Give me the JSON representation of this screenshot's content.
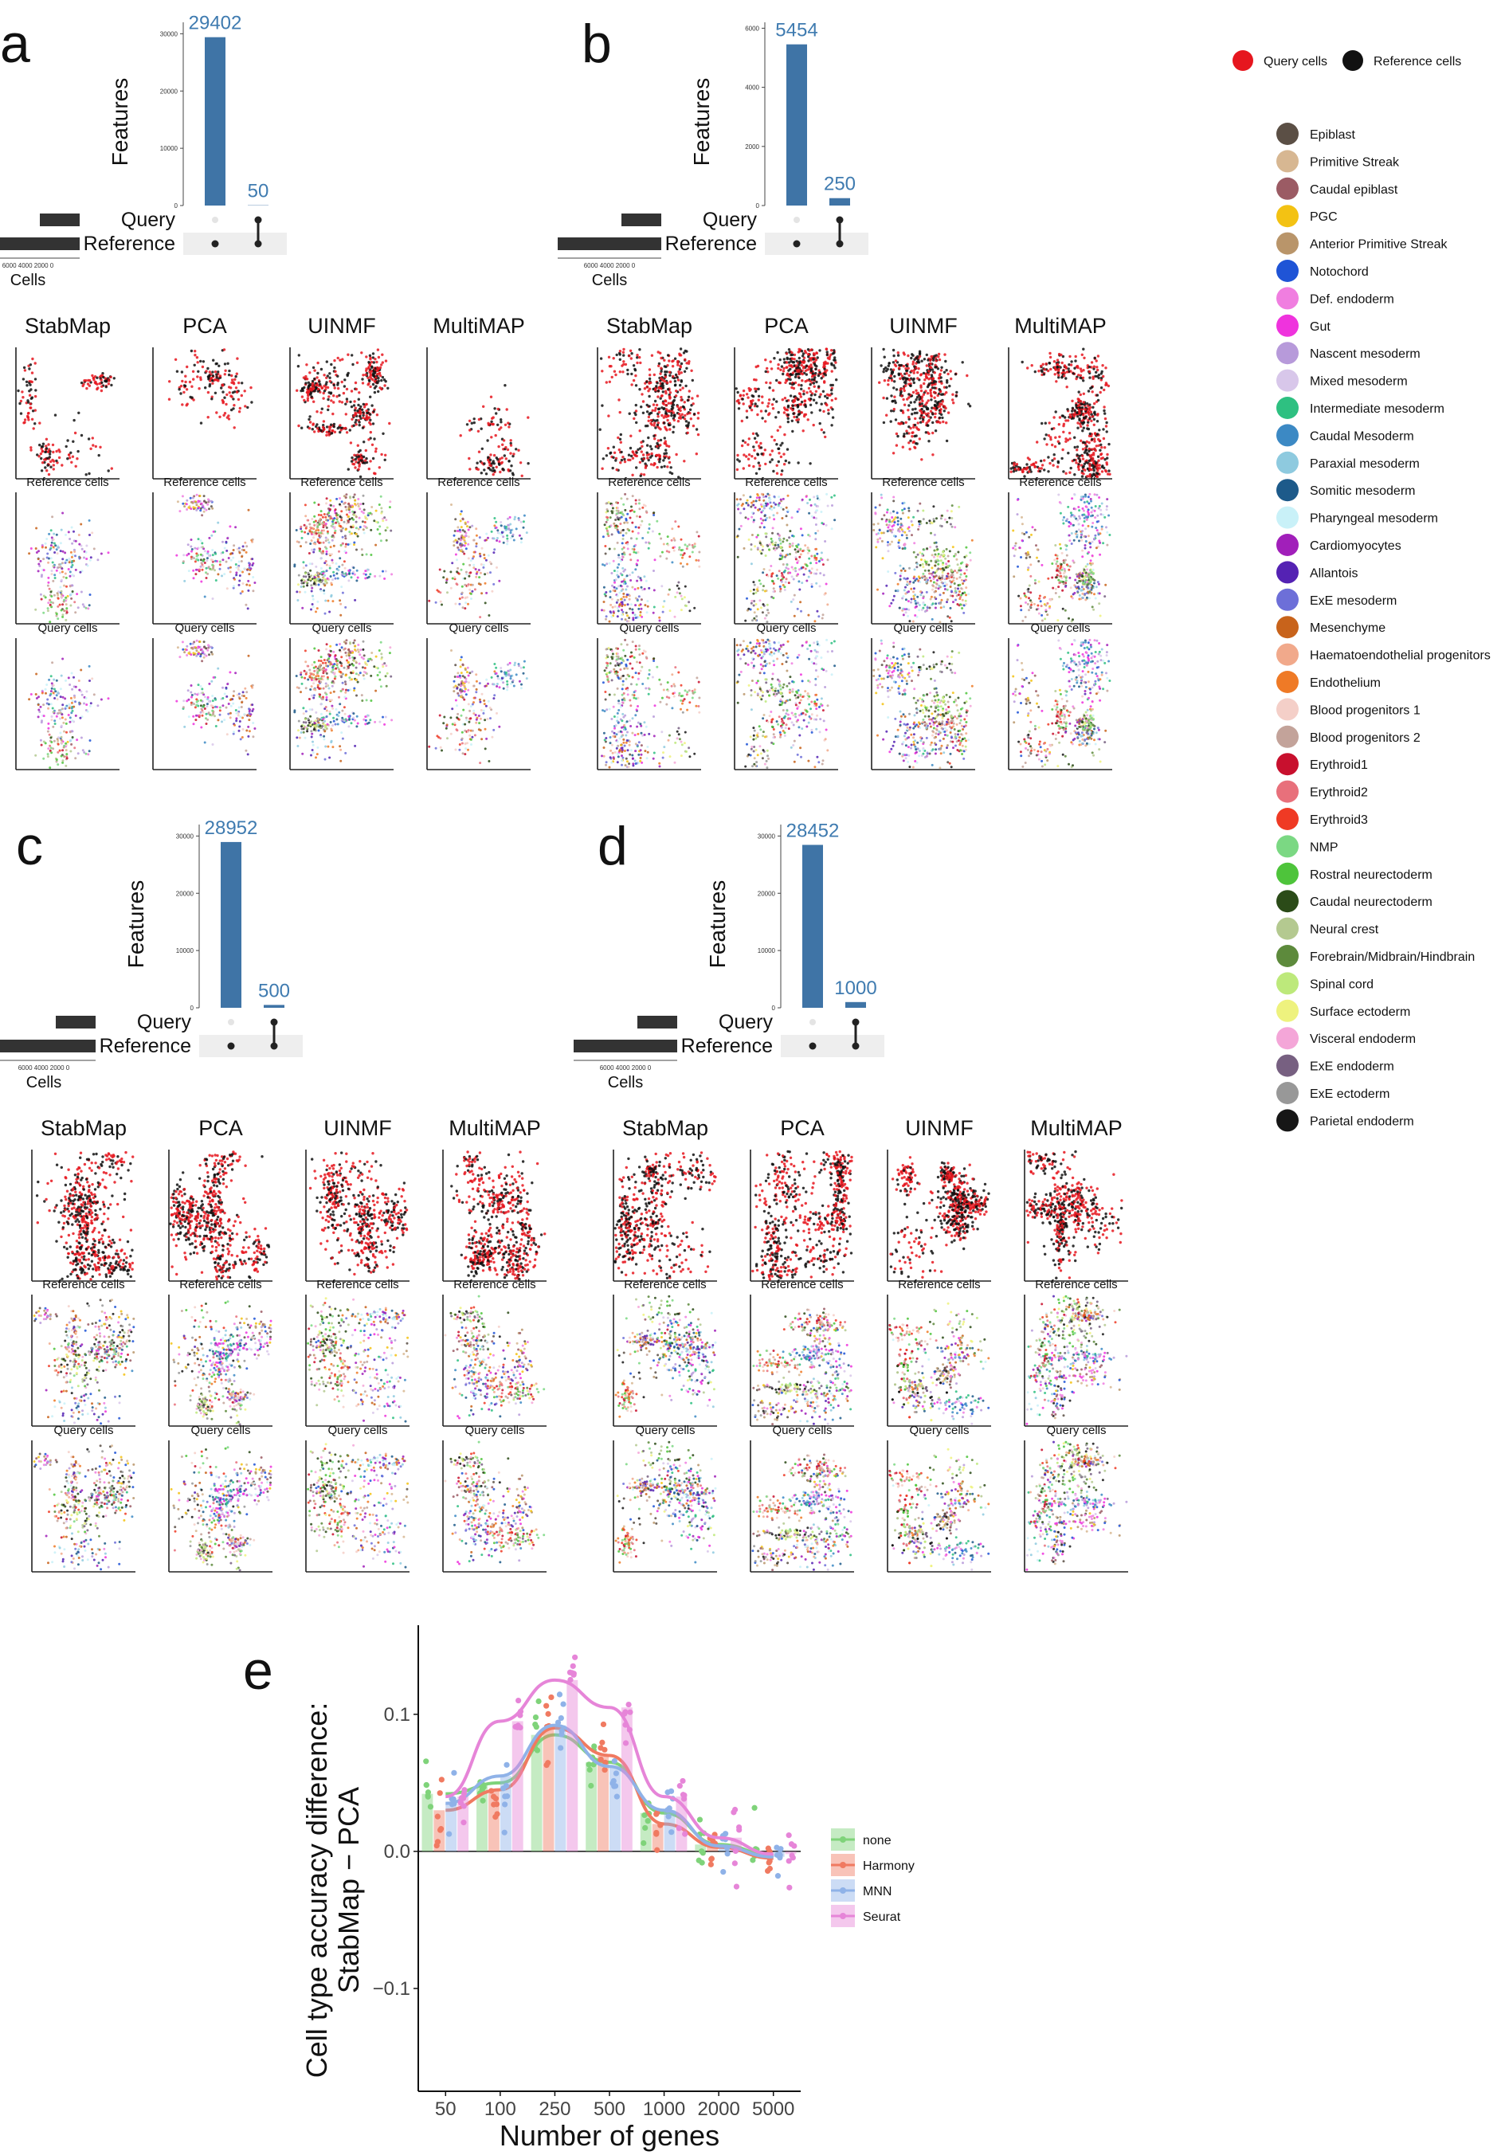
{
  "panel_letters": [
    "a",
    "b",
    "c",
    "d",
    "e"
  ],
  "method_titles": [
    "StabMap",
    "PCA",
    "UINMF",
    "MultiMAP"
  ],
  "row_titles": {
    "reference": "Reference cells",
    "query": "Query cells"
  },
  "upset": {
    "y_title": "Features",
    "x_title": "Cells",
    "set_labels": [
      "Query",
      "Reference"
    ],
    "x_ticks": "6000 4000 2000 0"
  },
  "chart_data": [
    {
      "type": "bar",
      "panel": "a",
      "categories": [
        "Reference only",
        "Query ∩ Reference"
      ],
      "values": [
        29402,
        50
      ],
      "ylim": [
        0,
        32000
      ],
      "yticks": [
        0,
        10000,
        20000,
        30000
      ],
      "ylabel": "Features"
    },
    {
      "type": "bar",
      "panel": "b",
      "categories": [
        "Reference only",
        "Query ∩ Reference"
      ],
      "values": [
        5454,
        250
      ],
      "ylim": [
        0,
        6200
      ],
      "yticks": [
        0,
        2000,
        4000,
        6000
      ],
      "ylabel": "Features"
    },
    {
      "type": "bar",
      "panel": "c",
      "categories": [
        "Reference only",
        "Query ∩ Reference"
      ],
      "values": [
        28952,
        500
      ],
      "ylim": [
        0,
        32000
      ],
      "yticks": [
        0,
        10000,
        20000,
        30000
      ],
      "ylabel": "Features"
    },
    {
      "type": "bar",
      "panel": "d",
      "categories": [
        "Reference only",
        "Query ∩ Reference"
      ],
      "values": [
        28452,
        1000
      ],
      "ylim": [
        0,
        32000
      ],
      "yticks": [
        0,
        10000,
        20000,
        30000
      ],
      "ylabel": "Features"
    },
    {
      "type": "bar",
      "panel": "e",
      "categories": [
        "50",
        "100",
        "250",
        "500",
        "1000",
        "2000",
        "5000"
      ],
      "xlabel": "Number of genes",
      "ylabel": "Cell type accuracy difference:\nStabMap − PCA",
      "ylim": [
        -0.175,
        0.165
      ],
      "yticks": [
        -0.1,
        0.0,
        0.1
      ],
      "series": [
        {
          "name": "none",
          "color": "#7fd37a",
          "values": [
            0.042,
            0.05,
            0.085,
            0.065,
            0.028,
            0.005,
            -0.003
          ]
        },
        {
          "name": "Harmony",
          "color": "#f07a61",
          "values": [
            0.03,
            0.045,
            0.09,
            0.07,
            0.02,
            0.003,
            -0.005
          ]
        },
        {
          "name": "MNN",
          "color": "#8fb2e8",
          "values": [
            0.035,
            0.055,
            0.092,
            0.062,
            0.03,
            0.004,
            -0.004
          ]
        },
        {
          "name": "Seurat",
          "color": "#e685d8",
          "values": [
            0.04,
            0.095,
            0.125,
            0.105,
            0.04,
            0.01,
            -0.002
          ]
        }
      ]
    }
  ],
  "legend_top": [
    {
      "label": "Query cells",
      "color": "#e6161e"
    },
    {
      "label": "Reference cells",
      "color": "#111111"
    }
  ],
  "cell_types": [
    {
      "label": "Epiblast",
      "color": "#5b4f45"
    },
    {
      "label": "Primitive Streak",
      "color": "#d7b792"
    },
    {
      "label": "Caudal epiblast",
      "color": "#9b5b64"
    },
    {
      "label": "PGC",
      "color": "#f3c213"
    },
    {
      "label": "Anterior Primitive Streak",
      "color": "#b9956a"
    },
    {
      "label": "Notochord",
      "color": "#1f54d6"
    },
    {
      "label": "Def. endoderm",
      "color": "#f07ee0"
    },
    {
      "label": "Gut",
      "color": "#ef33dd"
    },
    {
      "label": "Nascent mesoderm",
      "color": "#b79ada"
    },
    {
      "label": "Mixed mesoderm",
      "color": "#d8c7ea"
    },
    {
      "label": "Intermediate mesoderm",
      "color": "#2ec081"
    },
    {
      "label": "Caudal Mesoderm",
      "color": "#3c89c4"
    },
    {
      "label": "Paraxial mesoderm",
      "color": "#8ecadf"
    },
    {
      "label": "Somitic mesoderm",
      "color": "#1d5a8a"
    },
    {
      "label": "Pharyngeal mesoderm",
      "color": "#c9f1f8"
    },
    {
      "label": "Cardiomyocytes",
      "color": "#a11fba"
    },
    {
      "label": "Allantois",
      "color": "#5422b3"
    },
    {
      "label": "ExE mesoderm",
      "color": "#6d6fd8"
    },
    {
      "label": "Mesenchyme",
      "color": "#c8631b"
    },
    {
      "label": "Haematoendothelial progenitors",
      "color": "#f1a98b"
    },
    {
      "label": "Endothelium",
      "color": "#ef7a26"
    },
    {
      "label": "Blood progenitors 1",
      "color": "#f4cfc8"
    },
    {
      "label": "Blood progenitors 2",
      "color": "#c3a39a"
    },
    {
      "label": "Erythroid1",
      "color": "#c8102e"
    },
    {
      "label": "Erythroid2",
      "color": "#e8707b"
    },
    {
      "label": "Erythroid3",
      "color": "#ef3a24"
    },
    {
      "label": "NMP",
      "color": "#7bd883"
    },
    {
      "label": "Rostral neurectoderm",
      "color": "#4ec43b"
    },
    {
      "label": "Caudal neurectoderm",
      "color": "#2b4b18"
    },
    {
      "label": "Neural crest",
      "color": "#b4c990"
    },
    {
      "label": "Forebrain/Midbrain/Hindbrain",
      "color": "#5d8a3c"
    },
    {
      "label": "Spinal cord",
      "color": "#bde97b"
    },
    {
      "label": "Surface ectoderm",
      "color": "#eef27e"
    },
    {
      "label": "Visceral endoderm",
      "color": "#f4a6d8"
    },
    {
      "label": "ExE endoderm",
      "color": "#776081"
    },
    {
      "label": "ExE ectoderm",
      "color": "#989898"
    },
    {
      "label": "Parietal endoderm",
      "color": "#161616"
    }
  ]
}
